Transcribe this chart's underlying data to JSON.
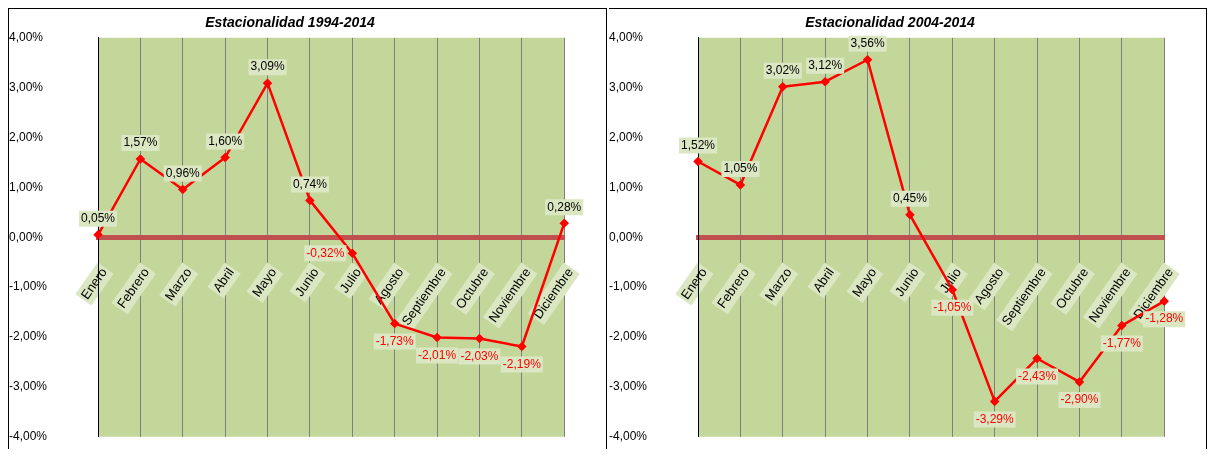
{
  "chart_data": [
    {
      "type": "line",
      "title": "Estacionalidad 1994-2014",
      "categories": [
        "Enero",
        "Febrero",
        "Marzo",
        "Abril",
        "Mayo",
        "Junio",
        "Julio",
        "Agosto",
        "Septiembre",
        "Octubre",
        "Noviembre",
        "Diciembre"
      ],
      "series": [
        {
          "color": "#ff0000",
          "values": [
            0.05,
            1.57,
            0.96,
            1.6,
            3.09,
            0.74,
            -0.32,
            -1.73,
            -2.01,
            -2.03,
            -2.19,
            0.28
          ],
          "value_labels": [
            "0,05%",
            "1,57%",
            "0,96%",
            "1,60%",
            "3,09%",
            "0,74%",
            "-0,32%",
            "-1,73%",
            "-2,01%",
            "-2,03%",
            "-2,19%",
            "0,28%"
          ]
        }
      ],
      "ylim": [
        -4,
        4
      ],
      "yticks": [
        {
          "value": -4,
          "label": "-4,00%"
        },
        {
          "value": -3,
          "label": "-3,00%"
        },
        {
          "value": -2,
          "label": "-2,00%"
        },
        {
          "value": -1,
          "label": "-1,00%"
        },
        {
          "value": 0,
          "label": "0,00%"
        },
        {
          "value": 1,
          "label": "1,00%"
        },
        {
          "value": 2,
          "label": "2,00%"
        },
        {
          "value": 3,
          "label": "3,00%"
        },
        {
          "value": 4,
          "label": "4,00%"
        }
      ],
      "grid": "x",
      "legend": false,
      "marker": "diamond",
      "line_style": "solid"
    },
    {
      "type": "line",
      "title": "Estacionalidad 2004-2014",
      "categories": [
        "Enero",
        "Febrero",
        "Marzo",
        "Abril",
        "Mayo",
        "Junio",
        "Julio",
        "Agosto",
        "Septiembre",
        "Octubre",
        "Noviembre",
        "Diciembre"
      ],
      "series": [
        {
          "color": "#ff0000",
          "values": [
            1.52,
            1.05,
            3.02,
            3.12,
            3.56,
            0.45,
            -1.05,
            -3.29,
            -2.43,
            -2.9,
            -1.77,
            -1.28
          ],
          "value_labels": [
            "1,52%",
            "1,05%",
            "3,02%",
            "3,12%",
            "3,56%",
            "0,45%",
            "-1,05%",
            "-3,29%",
            "-2,43%",
            "-2,90%",
            "-1,77%",
            "-1,28%"
          ]
        }
      ],
      "ylim": [
        -4,
        4
      ],
      "yticks": [
        {
          "value": -4,
          "label": "-4,00%"
        },
        {
          "value": -3,
          "label": "-3,00%"
        },
        {
          "value": -2,
          "label": "-2,00%"
        },
        {
          "value": -1,
          "label": "-1,00%"
        },
        {
          "value": 0,
          "label": "0,00%"
        },
        {
          "value": 1,
          "label": "1,00%"
        },
        {
          "value": 2,
          "label": "2,00%"
        },
        {
          "value": 3,
          "label": "3,00%"
        },
        {
          "value": 4,
          "label": "4,00%"
        }
      ],
      "grid": "x",
      "legend": false,
      "marker": "diamond",
      "line_style": "solid"
    }
  ]
}
